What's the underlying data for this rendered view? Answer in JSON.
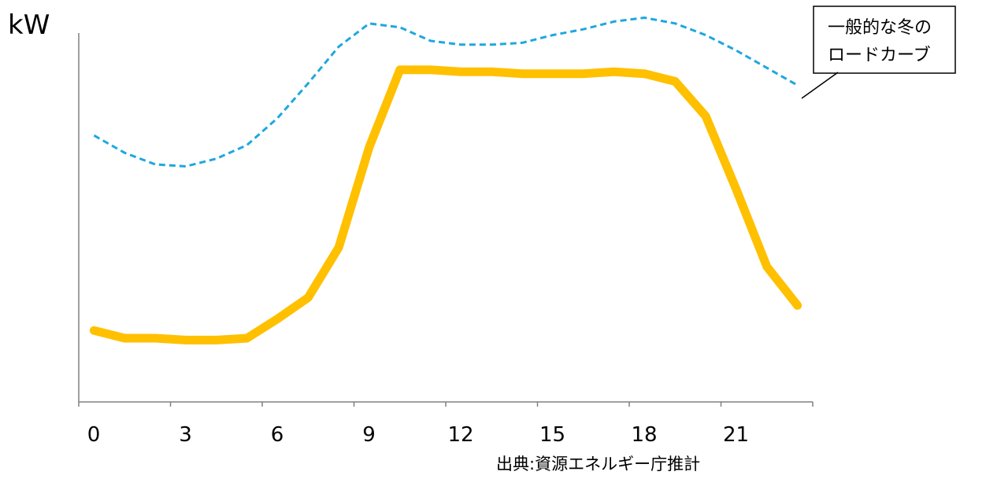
{
  "chart_data": {
    "type": "line",
    "title": "",
    "xlabel": "",
    "ylabel": "kW",
    "xlim": [
      0,
      24
    ],
    "ylim": [
      0,
      100
    ],
    "xticks": [
      0,
      3,
      6,
      9,
      12,
      15,
      18,
      21
    ],
    "xtick_labels": [
      "0",
      "3",
      "6",
      "9",
      "12",
      "15",
      "18",
      "21"
    ],
    "grid": false,
    "series": [
      {
        "name": "",
        "color": "#FFC000",
        "style": "solid",
        "x": [
          0.5,
          1.5,
          2.5,
          3.5,
          4.5,
          5.5,
          6.5,
          7.5,
          8.5,
          9.5,
          10.5,
          11.5,
          12.5,
          13.5,
          14.5,
          15.5,
          16.5,
          17.5,
          18.5,
          19.5,
          20.5,
          21.5,
          22.5,
          23.5
        ],
        "values": [
          18.5,
          16.5,
          16.5,
          16,
          16,
          16.5,
          21.5,
          27,
          40,
          66,
          86,
          86,
          85.5,
          85.5,
          85,
          85,
          85,
          85.5,
          85,
          83,
          74,
          55,
          35,
          25
        ]
      },
      {
        "name": "一般的な冬のロードカーブ",
        "color": "#1FA7DF",
        "style": "dashed",
        "x": [
          0.5,
          1.5,
          2.5,
          3.5,
          4.5,
          5.5,
          6.5,
          7.5,
          8.5,
          9.5,
          10.5,
          11.5,
          12.5,
          13.5,
          14.5,
          15.5,
          16.5,
          17.5,
          18.5,
          19.5,
          20.5,
          21.5,
          22.5,
          23.5
        ],
        "values": [
          69,
          64.5,
          61.5,
          61,
          63,
          66.5,
          73.5,
          82.5,
          92,
          98,
          97,
          93.5,
          92.5,
          92.5,
          93,
          95,
          96.5,
          98.5,
          99.5,
          98,
          95,
          91,
          86.5,
          82
        ]
      }
    ],
    "annotations": [
      {
        "id": "callout",
        "lines": [
          "一般的な冬の",
          "ロードカーブ"
        ],
        "points_to_series": 1
      }
    ],
    "source_note": "出典:資源エネルギー庁推計"
  }
}
